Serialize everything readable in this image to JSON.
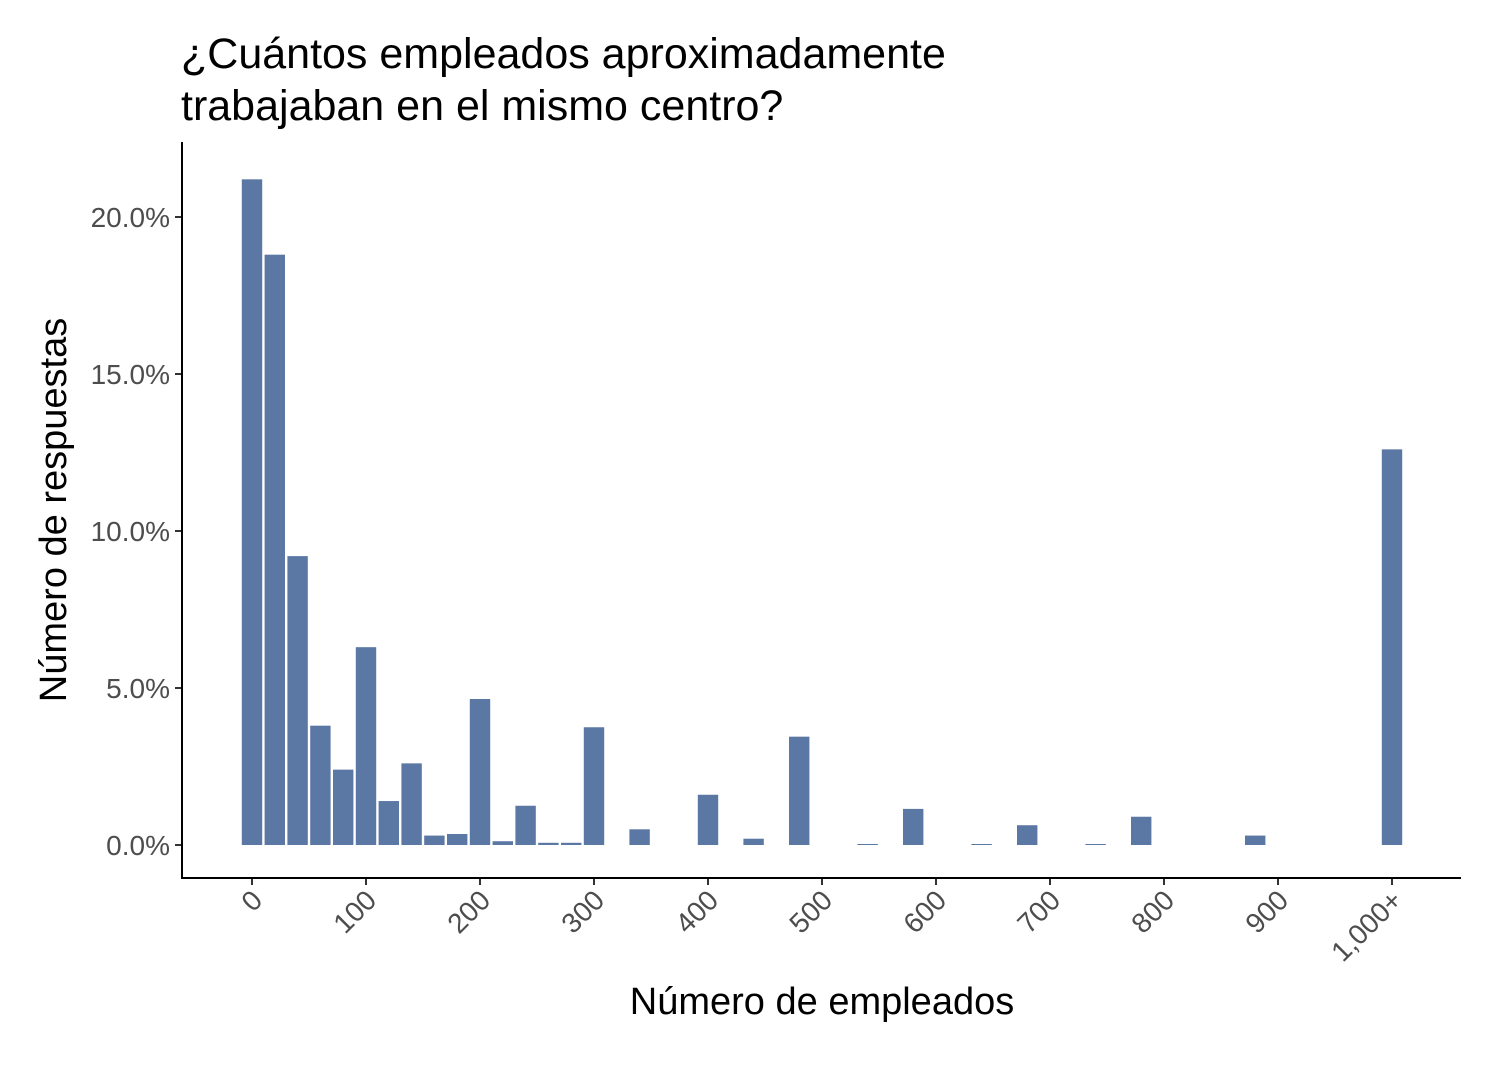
{
  "chart_data": {
    "type": "bar",
    "title_lines": [
      "¿Cuántos empleados aproximadamente",
      "trabajaban en el mismo centro?"
    ],
    "xlabel": "Número de empleados",
    "ylabel": "Número de respuestas",
    "bar_color": "#5b77a3",
    "x_domain": [
      -10,
      1010
    ],
    "x_ticks": [
      {
        "value": 0,
        "label": "0"
      },
      {
        "value": 100,
        "label": "100"
      },
      {
        "value": 200,
        "label": "200"
      },
      {
        "value": 300,
        "label": "300"
      },
      {
        "value": 400,
        "label": "400"
      },
      {
        "value": 500,
        "label": "500"
      },
      {
        "value": 600,
        "label": "600"
      },
      {
        "value": 700,
        "label": "700"
      },
      {
        "value": 800,
        "label": "800"
      },
      {
        "value": 900,
        "label": "900"
      },
      {
        "value": 1000,
        "label": "1,000+"
      }
    ],
    "y_ticks": [
      {
        "value": 0,
        "label": "0.0%"
      },
      {
        "value": 5,
        "label": "5.0%"
      },
      {
        "value": 10,
        "label": "10.0%"
      },
      {
        "value": 15,
        "label": "15.0%"
      },
      {
        "value": 20,
        "label": "20.0%"
      }
    ],
    "ylim": [
      -0.9,
      22.2
    ],
    "bin_width": 20,
    "bins": [
      {
        "x": 0,
        "value": 21.2
      },
      {
        "x": 20,
        "value": 18.8
      },
      {
        "x": 40,
        "value": 9.2
      },
      {
        "x": 60,
        "value": 3.8
      },
      {
        "x": 80,
        "value": 2.4
      },
      {
        "x": 100,
        "value": 6.3
      },
      {
        "x": 120,
        "value": 1.4
      },
      {
        "x": 140,
        "value": 2.6
      },
      {
        "x": 160,
        "value": 0.3
      },
      {
        "x": 180,
        "value": 0.35
      },
      {
        "x": 200,
        "value": 4.65
      },
      {
        "x": 220,
        "value": 0.12
      },
      {
        "x": 240,
        "value": 1.25
      },
      {
        "x": 260,
        "value": 0.07
      },
      {
        "x": 280,
        "value": 0.07
      },
      {
        "x": 300,
        "value": 3.75
      },
      {
        "x": 320,
        "value": 0.0
      },
      {
        "x": 340,
        "value": 0.5
      },
      {
        "x": 400,
        "value": 1.6
      },
      {
        "x": 440,
        "value": 0.2
      },
      {
        "x": 480,
        "value": 3.45
      },
      {
        "x": 540,
        "value": 0.03
      },
      {
        "x": 580,
        "value": 1.15
      },
      {
        "x": 640,
        "value": 0.03
      },
      {
        "x": 680,
        "value": 0.63
      },
      {
        "x": 740,
        "value": 0.02
      },
      {
        "x": 780,
        "value": 0.9
      },
      {
        "x": 880,
        "value": 0.3
      },
      {
        "x": 1000,
        "value": 12.6
      }
    ]
  }
}
